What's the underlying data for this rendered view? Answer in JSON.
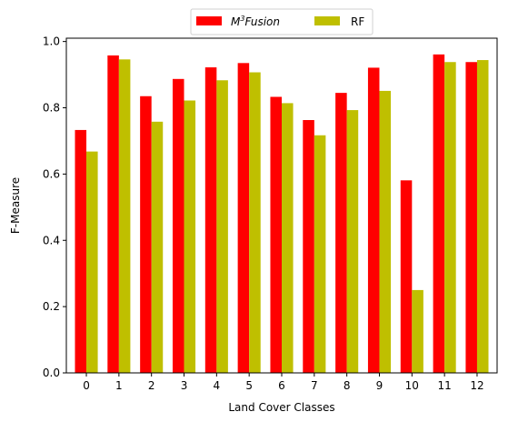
{
  "chart_data": {
    "type": "bar",
    "title": "",
    "xlabel": "Land Cover Classes",
    "ylabel": "F-Measure",
    "categories": [
      "0",
      "1",
      "2",
      "3",
      "4",
      "5",
      "6",
      "7",
      "8",
      "9",
      "10",
      "11",
      "12"
    ],
    "series": [
      {
        "name_base": "M",
        "name_sup": "3",
        "name_rest": "Fusion",
        "color": "#ff0000",
        "values": [
          0.733,
          0.958,
          0.835,
          0.887,
          0.922,
          0.935,
          0.833,
          0.763,
          0.845,
          0.921,
          0.581,
          0.961,
          0.938
        ]
      },
      {
        "name": "RF",
        "color": "#bfbf00",
        "values": [
          0.668,
          0.946,
          0.758,
          0.822,
          0.883,
          0.907,
          0.814,
          0.717,
          0.793,
          0.851,
          0.25,
          0.938,
          0.944
        ]
      }
    ],
    "yticks": [
      "0.0",
      "0.2",
      "0.4",
      "0.6",
      "0.8",
      "1.0"
    ],
    "ytick_values": [
      0,
      0.2,
      0.4,
      0.6,
      0.8,
      1.0
    ],
    "ylim": [
      0,
      1.01
    ],
    "xlim": [
      -0.615,
      12.615
    ],
    "grid": false,
    "legend_position": "top-center"
  }
}
